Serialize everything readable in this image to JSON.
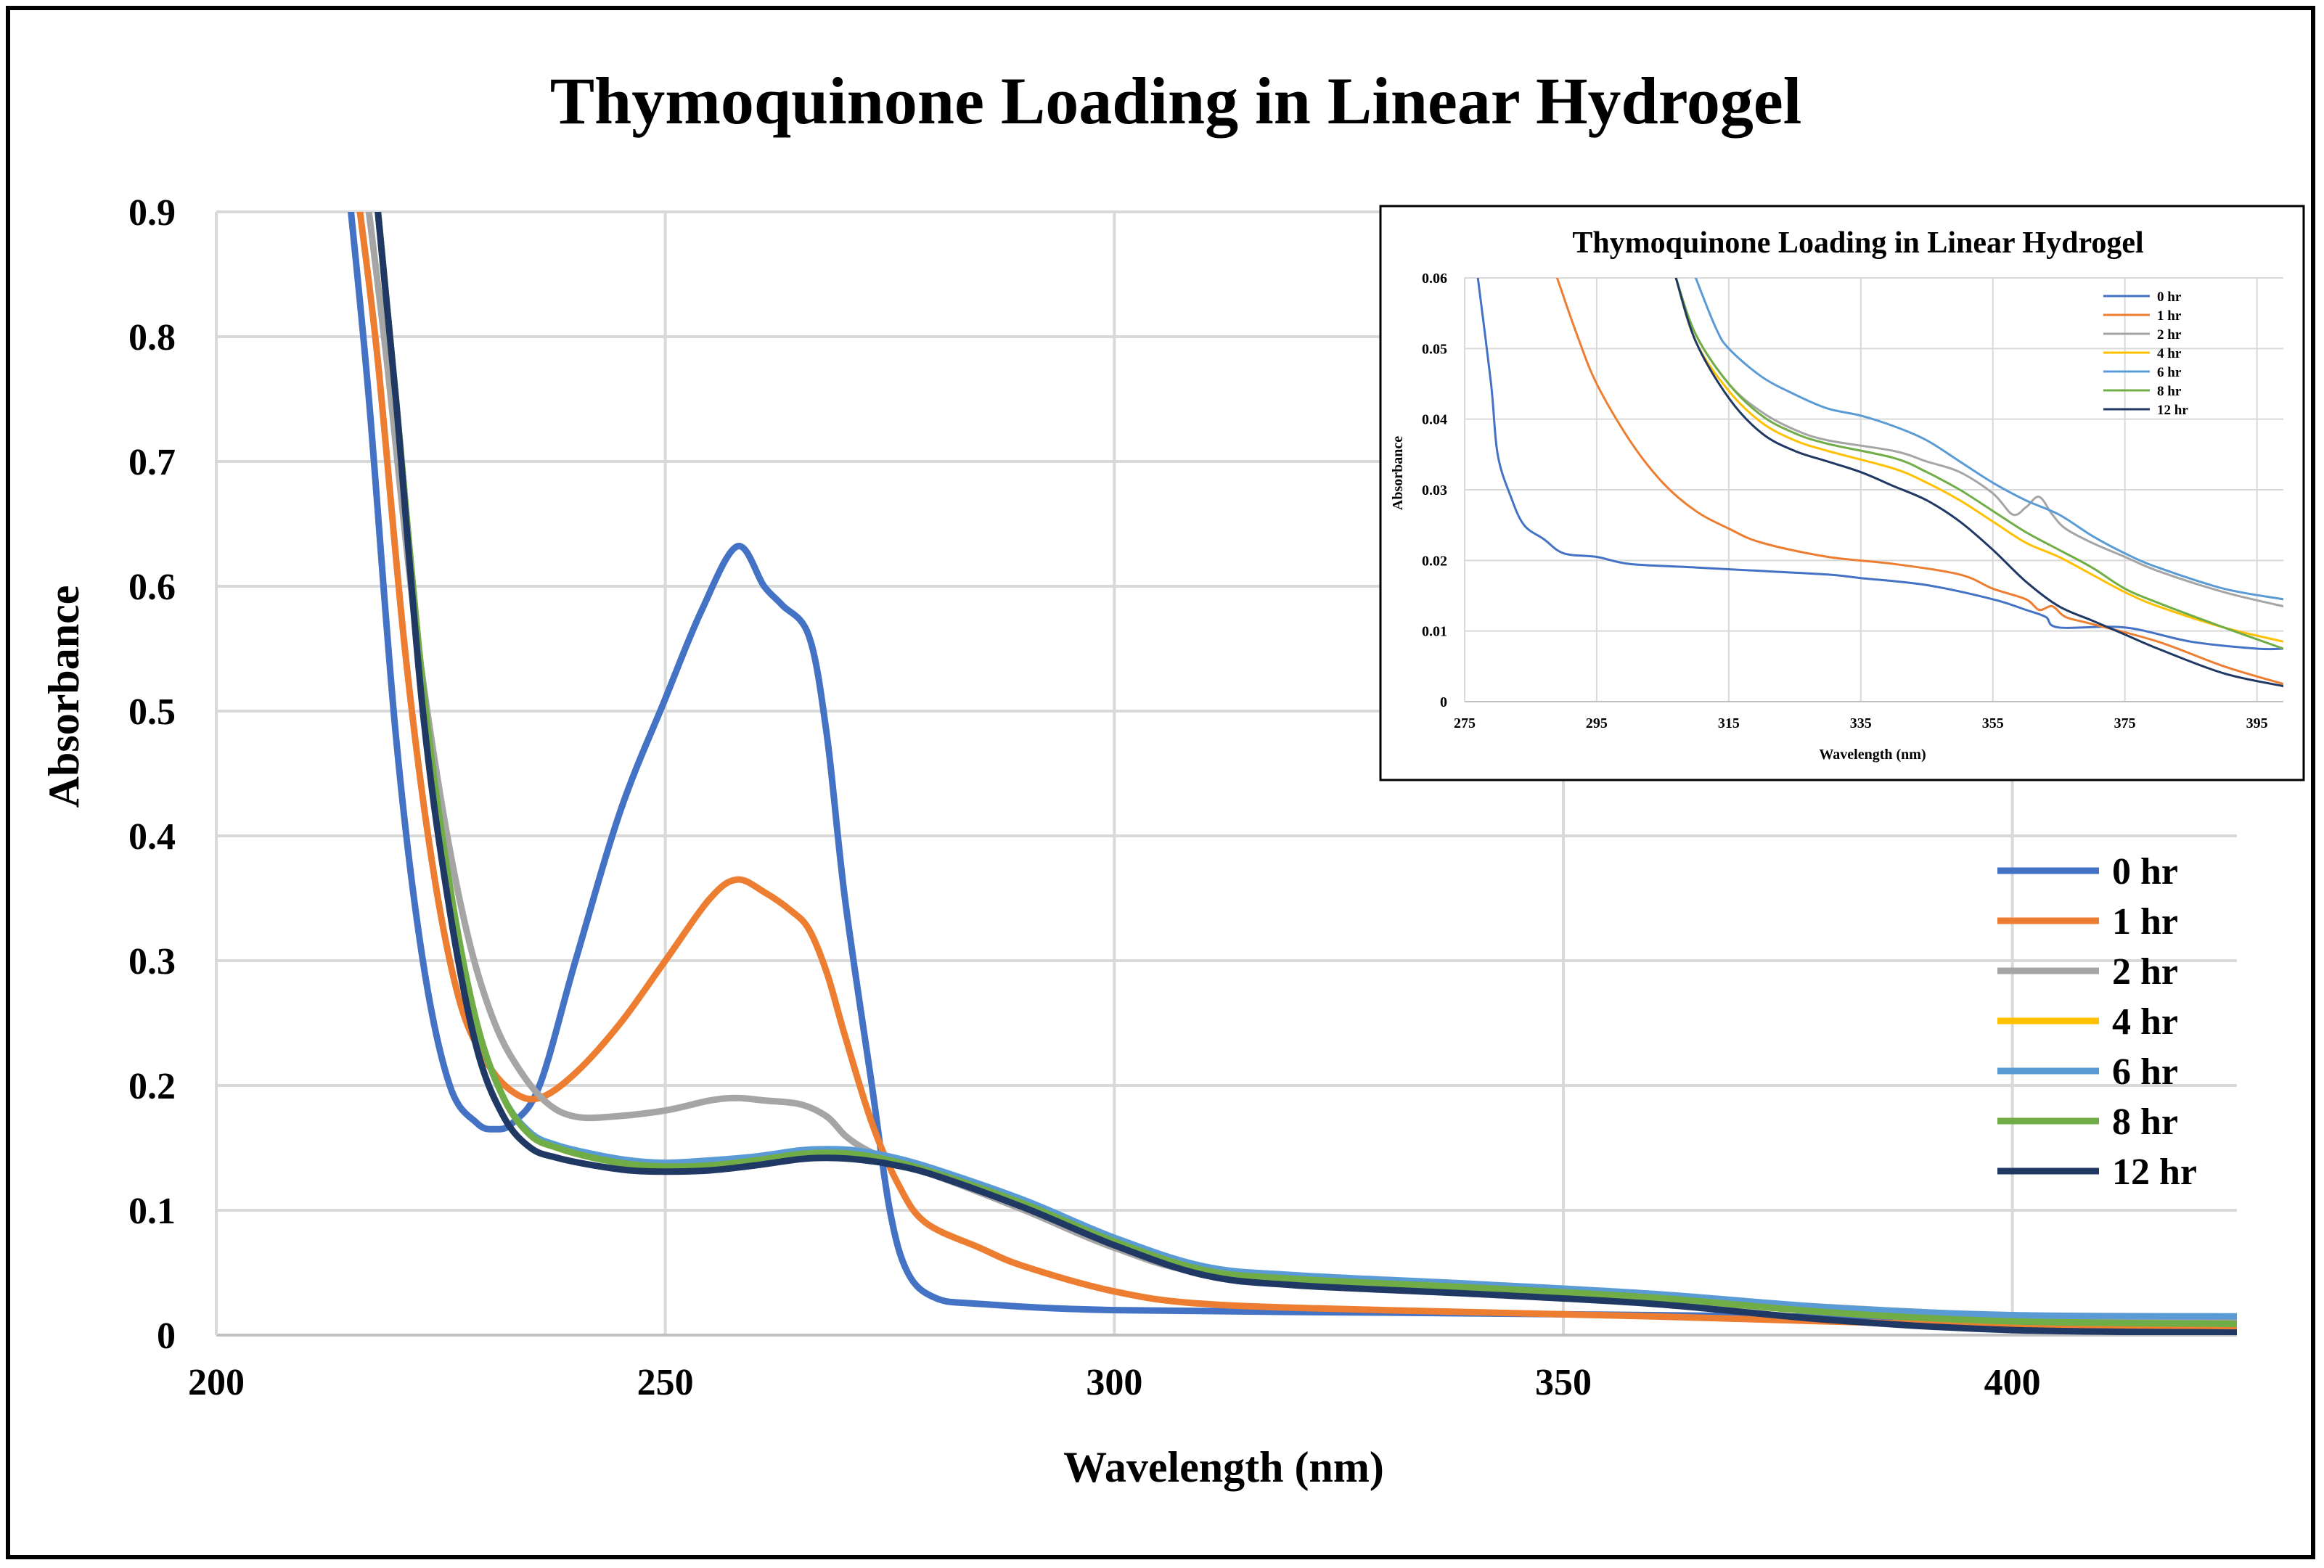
{
  "chart_data": [
    {
      "id": "main",
      "type": "line",
      "title": "Thymoquinone Loading in Linear Hydrogel",
      "xlabel": "Wavelength (nm)",
      "ylabel": "Absorbance",
      "xlim": [
        200,
        425
      ],
      "ylim": [
        0,
        0.9
      ],
      "xticks": [
        200,
        250,
        300,
        350,
        400
      ],
      "xtick_labels": [
        "200",
        "250",
        "300",
        "350",
        "400"
      ],
      "yticks": [
        0,
        0.1,
        0.2,
        0.3,
        0.4,
        0.5,
        0.6,
        0.7,
        0.8,
        0.9
      ],
      "ytick_labels": [
        "0",
        "0.1",
        "0.2",
        "0.3",
        "0.4",
        "0.5",
        "0.6",
        "0.7",
        "0.8",
        "0.9"
      ],
      "grid": true,
      "legend_position": "right",
      "series": [
        {
          "name": "0 hr",
          "color": "#4472C4",
          "x": [
            215,
            217,
            220,
            223,
            226,
            229,
            231,
            233,
            236,
            240,
            245,
            250,
            254,
            258,
            261,
            263,
            266,
            268,
            270,
            273,
            275,
            277,
            280,
            285,
            300,
            330,
            360,
            400,
            425
          ],
          "y": [
            0.9,
            0.75,
            0.48,
            0.3,
            0.2,
            0.17,
            0.165,
            0.17,
            0.2,
            0.3,
            0.42,
            0.51,
            0.58,
            0.632,
            0.6,
            0.585,
            0.56,
            0.48,
            0.35,
            0.2,
            0.1,
            0.05,
            0.03,
            0.025,
            0.02,
            0.018,
            0.016,
            0.013,
            0.012
          ]
        },
        {
          "name": "1 hr",
          "color": "#ED7D31",
          "x": [
            216,
            218,
            221,
            224,
            227,
            230,
            233,
            236,
            240,
            245,
            250,
            255,
            258,
            261,
            264,
            266,
            268,
            270,
            273,
            276,
            279,
            285,
            290,
            300,
            310,
            330,
            360,
            400,
            425
          ],
          "y": [
            0.9,
            0.78,
            0.55,
            0.38,
            0.27,
            0.22,
            0.195,
            0.19,
            0.21,
            0.25,
            0.3,
            0.35,
            0.365,
            0.355,
            0.34,
            0.325,
            0.29,
            0.24,
            0.17,
            0.12,
            0.09,
            0.07,
            0.055,
            0.035,
            0.025,
            0.02,
            0.015,
            0.007,
            0.006
          ]
        },
        {
          "name": "2 hr",
          "color": "#A5A5A5",
          "x": [
            217,
            219,
            222,
            225,
            228,
            231,
            234,
            237,
            240,
            244,
            250,
            255,
            258,
            261,
            265,
            268,
            270,
            272,
            275,
            280,
            290,
            300,
            310,
            330,
            360,
            400,
            425
          ],
          "y": [
            0.9,
            0.78,
            0.58,
            0.43,
            0.32,
            0.25,
            0.21,
            0.185,
            0.175,
            0.175,
            0.18,
            0.188,
            0.19,
            0.188,
            0.185,
            0.175,
            0.16,
            0.15,
            0.14,
            0.128,
            0.1,
            0.07,
            0.05,
            0.04,
            0.03,
            0.015,
            0.013
          ]
        },
        {
          "name": "4 hr",
          "color": "#FFC000",
          "x": [
            218,
            220,
            223,
            226,
            229,
            232,
            235,
            238,
            242,
            246,
            250,
            255,
            260,
            265,
            268,
            271,
            275,
            280,
            290,
            300,
            310,
            320,
            340,
            360,
            380,
            400,
            425
          ],
          "y": [
            0.9,
            0.75,
            0.52,
            0.36,
            0.25,
            0.19,
            0.16,
            0.15,
            0.142,
            0.137,
            0.135,
            0.136,
            0.14,
            0.145,
            0.146,
            0.145,
            0.14,
            0.13,
            0.105,
            0.075,
            0.052,
            0.045,
            0.038,
            0.03,
            0.018,
            0.011,
            0.009
          ]
        },
        {
          "name": "6 hr",
          "color": "#5B9BD5",
          "x": [
            218,
            220,
            223,
            226,
            229,
            232,
            235,
            238,
            242,
            246,
            250,
            255,
            260,
            265,
            268,
            271,
            275,
            280,
            290,
            300,
            310,
            320,
            340,
            360,
            380,
            400,
            425
          ],
          "y": [
            0.9,
            0.75,
            0.52,
            0.36,
            0.25,
            0.19,
            0.162,
            0.152,
            0.145,
            0.14,
            0.138,
            0.14,
            0.143,
            0.148,
            0.149,
            0.148,
            0.143,
            0.133,
            0.108,
            0.078,
            0.055,
            0.048,
            0.041,
            0.033,
            0.022,
            0.016,
            0.015
          ]
        },
        {
          "name": "8 hr",
          "color": "#70AD47",
          "x": [
            218,
            220,
            223,
            226,
            229,
            232,
            235,
            238,
            242,
            246,
            250,
            255,
            260,
            265,
            268,
            271,
            275,
            280,
            290,
            300,
            310,
            320,
            340,
            360,
            380,
            400,
            425
          ],
          "y": [
            0.9,
            0.75,
            0.52,
            0.36,
            0.25,
            0.19,
            0.16,
            0.15,
            0.142,
            0.137,
            0.135,
            0.136,
            0.14,
            0.145,
            0.146,
            0.145,
            0.14,
            0.13,
            0.105,
            0.075,
            0.052,
            0.045,
            0.038,
            0.03,
            0.018,
            0.011,
            0.009
          ]
        },
        {
          "name": "12 hr",
          "color": "#203864",
          "x": [
            218,
            220,
            223,
            226,
            229,
            232,
            235,
            238,
            242,
            246,
            250,
            255,
            260,
            265,
            268,
            271,
            275,
            280,
            290,
            300,
            310,
            320,
            340,
            360,
            380,
            400,
            425
          ],
          "y": [
            0.9,
            0.75,
            0.5,
            0.34,
            0.23,
            0.175,
            0.15,
            0.142,
            0.136,
            0.132,
            0.131,
            0.132,
            0.136,
            0.141,
            0.142,
            0.141,
            0.137,
            0.128,
            0.102,
            0.072,
            0.048,
            0.04,
            0.033,
            0.025,
            0.012,
            0.004,
            0.002
          ]
        }
      ]
    },
    {
      "id": "inset",
      "type": "line",
      "title": "Thymoquinone Loading in Linear Hydrogel",
      "xlabel": "Wavelength (nm)",
      "ylabel": "Absorbance",
      "xlim": [
        275,
        399
      ],
      "ylim": [
        0,
        0.06
      ],
      "xticks": [
        275,
        295,
        315,
        335,
        355,
        375,
        395
      ],
      "xtick_labels": [
        "275",
        "295",
        "315",
        "335",
        "355",
        "375",
        "395"
      ],
      "yticks": [
        0,
        0.01,
        0.02,
        0.03,
        0.04,
        0.05,
        0.06
      ],
      "ytick_labels": [
        "0",
        "0.01",
        "0.02",
        "0.03",
        "0.04",
        "0.05",
        "0.06"
      ],
      "grid": true,
      "legend_position": "top-right",
      "series": [
        {
          "name": "0 hr",
          "color": "#4472C4",
          "x": [
            277,
            279,
            280,
            282,
            284,
            287,
            290,
            295,
            300,
            310,
            320,
            330,
            335,
            345,
            355,
            360,
            363,
            365,
            375,
            385,
            395,
            399
          ],
          "y": [
            0.06,
            0.045,
            0.035,
            0.029,
            0.025,
            0.023,
            0.021,
            0.0205,
            0.0195,
            0.019,
            0.0185,
            0.018,
            0.0175,
            0.0165,
            0.0145,
            0.013,
            0.012,
            0.0105,
            0.0105,
            0.0085,
            0.0075,
            0.0075
          ]
        },
        {
          "name": "1 hr",
          "color": "#ED7D31",
          "x": [
            289,
            292,
            295,
            300,
            305,
            310,
            315,
            320,
            330,
            340,
            350,
            355,
            360,
            362,
            364,
            366,
            370,
            380,
            390,
            399
          ],
          "y": [
            0.06,
            0.052,
            0.045,
            0.037,
            0.031,
            0.027,
            0.0245,
            0.0225,
            0.0205,
            0.0195,
            0.018,
            0.016,
            0.0145,
            0.013,
            0.0135,
            0.012,
            0.011,
            0.0085,
            0.005,
            0.0025
          ]
        },
        {
          "name": "2 hr",
          "color": "#A5A5A5",
          "x": [
            307,
            310,
            315,
            320,
            325,
            330,
            340,
            345,
            350,
            355,
            358,
            360,
            362,
            364,
            366,
            370,
            375,
            380,
            390,
            399
          ],
          "y": [
            0.06,
            0.052,
            0.045,
            0.041,
            0.0385,
            0.037,
            0.0355,
            0.034,
            0.0325,
            0.0295,
            0.0265,
            0.0275,
            0.029,
            0.0265,
            0.0245,
            0.0225,
            0.0205,
            0.0185,
            0.0155,
            0.0135
          ]
        },
        {
          "name": "4 hr",
          "color": "#FFC000",
          "x": [
            307,
            310,
            315,
            320,
            325,
            330,
            340,
            345,
            350,
            355,
            360,
            365,
            370,
            375,
            380,
            390,
            399
          ],
          "y": [
            0.06,
            0.051,
            0.044,
            0.0395,
            0.037,
            0.0355,
            0.033,
            0.031,
            0.0285,
            0.0255,
            0.0225,
            0.0205,
            0.018,
            0.0155,
            0.0135,
            0.0105,
            0.0085
          ]
        },
        {
          "name": "6 hr",
          "color": "#5B9BD5",
          "x": [
            310,
            313,
            315,
            320,
            325,
            330,
            335,
            340,
            345,
            350,
            355,
            360,
            365,
            370,
            375,
            380,
            390,
            399
          ],
          "y": [
            0.06,
            0.053,
            0.05,
            0.046,
            0.0435,
            0.0415,
            0.0405,
            0.039,
            0.037,
            0.034,
            0.031,
            0.0285,
            0.0265,
            0.0235,
            0.021,
            0.019,
            0.016,
            0.0145
          ]
        },
        {
          "name": "8 hr",
          "color": "#70AD47",
          "x": [
            307,
            310,
            315,
            320,
            325,
            330,
            340,
            345,
            350,
            355,
            360,
            365,
            370,
            375,
            380,
            390,
            399
          ],
          "y": [
            0.06,
            0.052,
            0.045,
            0.0405,
            0.038,
            0.0365,
            0.0345,
            0.0325,
            0.03,
            0.027,
            0.024,
            0.0215,
            0.019,
            0.016,
            0.014,
            0.0105,
            0.0075
          ]
        },
        {
          "name": "12 hr",
          "color": "#203864",
          "x": [
            307,
            310,
            315,
            320,
            325,
            330,
            335,
            340,
            345,
            350,
            355,
            360,
            365,
            370,
            375,
            380,
            390,
            399
          ],
          "y": [
            0.06,
            0.051,
            0.043,
            0.038,
            0.0355,
            0.034,
            0.0325,
            0.0305,
            0.0285,
            0.0255,
            0.0215,
            0.017,
            0.0135,
            0.0115,
            0.0095,
            0.0075,
            0.004,
            0.0022
          ]
        }
      ]
    }
  ]
}
